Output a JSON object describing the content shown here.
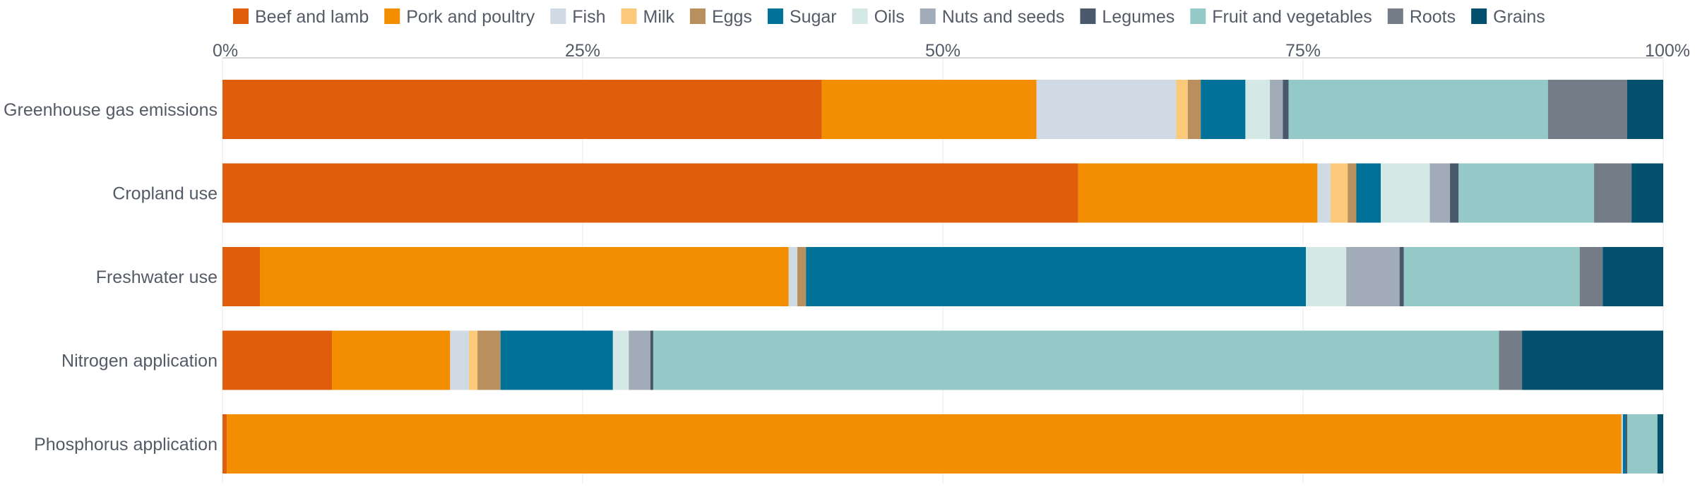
{
  "chart_data": {
    "type": "bar",
    "orientation": "horizontal",
    "stacked": true,
    "normalized": true,
    "title": "",
    "xlabel": "",
    "ylabel": "",
    "xlim": [
      0,
      100
    ],
    "x_ticks": [
      "0%",
      "25%",
      "50%",
      "75%",
      "100%"
    ],
    "x_axis_position": "top",
    "grid": true,
    "legend_position": "top",
    "categories": [
      "Greenhouse gas emissions",
      "Cropland use",
      "Freshwater use",
      "Nitrogen application",
      "Phosphorus application"
    ],
    "series": [
      {
        "name": "Beef and lamb",
        "color": "#e05e0b",
        "values": [
          41.6,
          59.4,
          2.6,
          7.6,
          0.3
        ]
      },
      {
        "name": "Pork and poultry",
        "color": "#f28e00",
        "values": [
          14.9,
          16.6,
          36.7,
          8.2,
          96.8
        ]
      },
      {
        "name": "Fish",
        "color": "#cfdae4",
        "values": [
          9.7,
          0.9,
          0.6,
          1.3,
          0.1
        ]
      },
      {
        "name": "Milk",
        "color": "#fbc97a",
        "values": [
          0.8,
          1.2,
          0.0,
          0.6,
          0.0
        ]
      },
      {
        "name": "Eggs",
        "color": "#b98f5e",
        "values": [
          0.9,
          0.6,
          0.6,
          1.6,
          0.0
        ]
      },
      {
        "name": "Sugar",
        "color": "#00729a",
        "values": [
          3.1,
          1.7,
          34.7,
          7.8,
          0.2
        ]
      },
      {
        "name": "Oils",
        "color": "#d4e9e6",
        "values": [
          1.7,
          3.4,
          2.8,
          1.1,
          0.0
        ]
      },
      {
        "name": "Nuts and seeds",
        "color": "#a1acb8",
        "values": [
          0.9,
          1.4,
          3.7,
          1.5,
          0.0
        ]
      },
      {
        "name": "Legumes",
        "color": "#49586b",
        "values": [
          0.4,
          0.6,
          0.3,
          0.2,
          0.1
        ]
      },
      {
        "name": "Fruit and vegetables",
        "color": "#95c9c8",
        "values": [
          18.0,
          9.4,
          12.2,
          58.7,
          2.1
        ]
      },
      {
        "name": "Roots",
        "color": "#737c87",
        "values": [
          5.5,
          2.6,
          1.6,
          1.6,
          0.0
        ]
      },
      {
        "name": "Grains",
        "color": "#03506e",
        "values": [
          2.5,
          2.2,
          4.2,
          9.8,
          0.4
        ]
      }
    ]
  }
}
